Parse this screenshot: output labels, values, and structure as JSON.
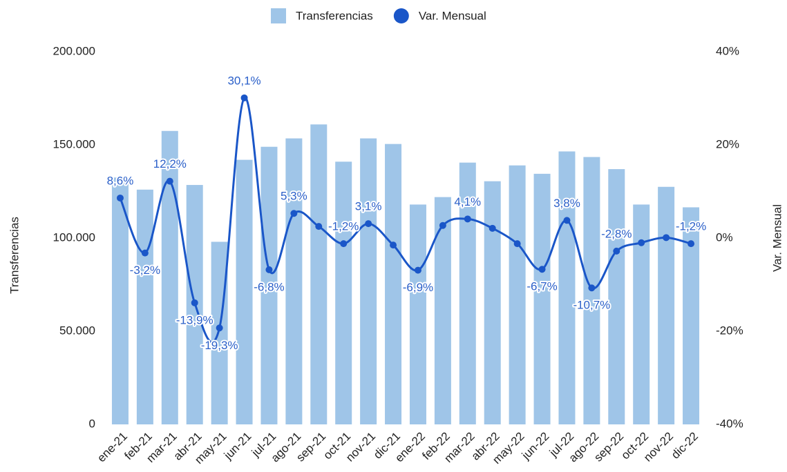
{
  "chart_data": {
    "type": "bar-line",
    "categories": [
      "ene-21",
      "feb-21",
      "mar-21",
      "abr-21",
      "may-21",
      "jun-21",
      "jul-21",
      "ago-21",
      "sep-21",
      "oct-21",
      "nov-21",
      "dic-21",
      "ene-22",
      "feb-22",
      "mar-22",
      "abr-22",
      "may-22",
      "jun-22",
      "jul-22",
      "ago-22",
      "sep-22",
      "oct-22",
      "nov-22",
      "dic-22"
    ],
    "series": [
      {
        "name": "Transferencias",
        "type": "bar",
        "color": "#9fc5e8",
        "axis": "y",
        "values": [
          132500,
          126000,
          157500,
          128500,
          98000,
          142000,
          149000,
          153500,
          161000,
          141000,
          153500,
          150500,
          118000,
          122000,
          140500,
          130500,
          139000,
          134500,
          146500,
          143500,
          137000,
          118000,
          127500,
          116500
        ]
      },
      {
        "name": "Var. Mensual",
        "type": "line",
        "color": "#1a56c8",
        "axis": "y2",
        "values": [
          8.6,
          -3.2,
          12.2,
          -13.9,
          -19.3,
          30.1,
          -6.8,
          5.3,
          2.5,
          -1.2,
          3.1,
          -1.5,
          -6.9,
          2.7,
          4.1,
          2.1,
          -1.2,
          -6.7,
          3.8,
          -10.7,
          -2.8,
          -1.0,
          0.1,
          -1.2
        ],
        "value_labels": [
          "8,6%",
          "-3,2%",
          "12,2%",
          "-13,9%",
          "-19,3%",
          "30,1%",
          "-6,8%",
          "5,3%",
          null,
          "-1,2%",
          "3,1%",
          null,
          "-6,9%",
          null,
          "4,1%",
          null,
          null,
          "-6,7%",
          "3,8%",
          "-10,7%",
          "-2,8%",
          null,
          null,
          "-1,2%"
        ]
      }
    ],
    "ylabel": "Transferencias",
    "y2label": "Var. Mensual",
    "ylim": [
      0,
      200000
    ],
    "yticks": [
      0,
      {
        "value": 50000,
        "label": "50.000"
      },
      {
        "value": 100000,
        "label": "100.000"
      },
      {
        "value": 150000,
        "label": "150.000"
      },
      {
        "value": 200000,
        "label": "200.000"
      }
    ],
    "y2lim": [
      -40,
      40
    ],
    "y2ticks": [
      {
        "value": -40,
        "label": "-40%"
      },
      {
        "value": -20,
        "label": "-20%"
      },
      {
        "value": 0,
        "label": "0%"
      },
      {
        "value": 20,
        "label": "20%"
      },
      {
        "value": 40,
        "label": "40%"
      }
    ],
    "legend": "top",
    "grid": false
  }
}
